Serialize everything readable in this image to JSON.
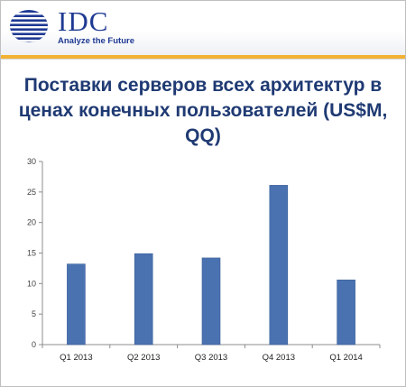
{
  "header": {
    "logo_text": "IDC",
    "tagline": "Analyze the Future"
  },
  "colors": {
    "brand_blue": "#1f3a93",
    "accent_gold": "#f2b233",
    "title": "#1f3a73",
    "bar": "#4a72b0"
  },
  "chart_data": {
    "type": "bar",
    "title": "Поставки серверов всех архитектур в ценах конечных пользователей (US$M, QQ)",
    "categories": [
      "Q1 2013",
      "Q2 2013",
      "Q3 2013",
      "Q4 2013",
      "Q1 2014"
    ],
    "values": [
      13.2,
      14.9,
      14.2,
      26.1,
      10.6
    ],
    "ylim": [
      0,
      30
    ],
    "yticks": [
      0,
      5,
      10,
      15,
      20,
      25,
      30
    ],
    "xlabel": "",
    "ylabel": "",
    "grid": false,
    "legend": "none"
  }
}
